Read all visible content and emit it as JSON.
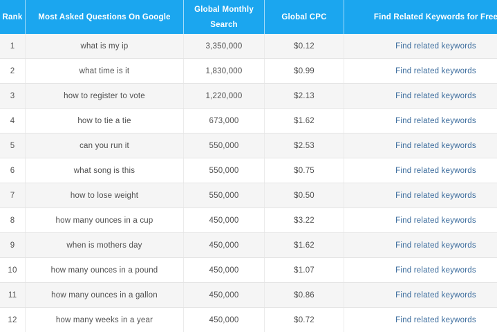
{
  "table": {
    "columns": [
      {
        "key": "rank",
        "label": "Rank"
      },
      {
        "key": "question",
        "label": "Most Asked Questions On Google"
      },
      {
        "key": "global_monthly_search",
        "label": "Global Monthly Search"
      },
      {
        "key": "global_cpc",
        "label": "Global CPC"
      },
      {
        "key": "related",
        "label": "Find Related Keywords for Free"
      }
    ],
    "link_label": "Find related keywords",
    "rows": [
      {
        "rank": "1",
        "question": "what is my ip",
        "global_monthly_search": "3,350,000",
        "global_cpc": "$0.12"
      },
      {
        "rank": "2",
        "question": "what time is it",
        "global_monthly_search": "1,830,000",
        "global_cpc": "$0.99"
      },
      {
        "rank": "3",
        "question": "how to register to vote",
        "global_monthly_search": "1,220,000",
        "global_cpc": "$2.13"
      },
      {
        "rank": "4",
        "question": "how to tie a tie",
        "global_monthly_search": "673,000",
        "global_cpc": "$1.62"
      },
      {
        "rank": "5",
        "question": "can you run it",
        "global_monthly_search": "550,000",
        "global_cpc": "$2.53"
      },
      {
        "rank": "6",
        "question": "what song is this",
        "global_monthly_search": "550,000",
        "global_cpc": "$0.75"
      },
      {
        "rank": "7",
        "question": "how to lose weight",
        "global_monthly_search": "550,000",
        "global_cpc": "$0.50"
      },
      {
        "rank": "8",
        "question": "how many ounces in a cup",
        "global_monthly_search": "450,000",
        "global_cpc": "$3.22"
      },
      {
        "rank": "9",
        "question": "when is mothers day",
        "global_monthly_search": "450,000",
        "global_cpc": "$1.62"
      },
      {
        "rank": "10",
        "question": "how many ounces in a pound",
        "global_monthly_search": "450,000",
        "global_cpc": "$1.07"
      },
      {
        "rank": "11",
        "question": "how many ounces in a gallon",
        "global_monthly_search": "450,000",
        "global_cpc": "$0.86"
      },
      {
        "rank": "12",
        "question": "how many weeks in a year",
        "global_monthly_search": "450,000",
        "global_cpc": "$0.72"
      }
    ]
  },
  "colors": {
    "header_bg": "#1ba6ef",
    "header_text": "#ffffff",
    "row_bg": "#ffffff",
    "row_alt_bg": "#f5f5f5",
    "body_text": "#4f4f4f",
    "link": "#3a6b9c",
    "border": "#e4e4e4"
  }
}
